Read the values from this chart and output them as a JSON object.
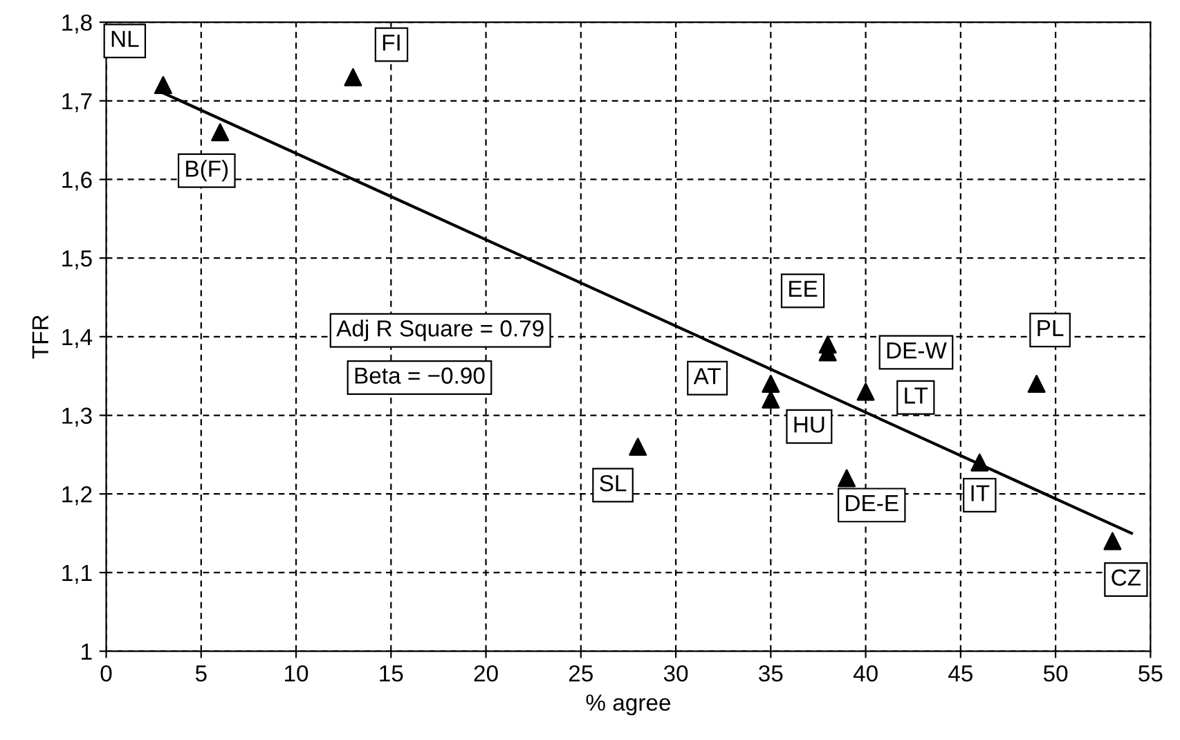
{
  "chart_data": {
    "type": "scatter",
    "xlabel": "% agree",
    "ylabel": "TFR",
    "xlim": [
      0,
      55
    ],
    "xticks": [
      0,
      5,
      10,
      15,
      20,
      25,
      30,
      35,
      40,
      45,
      50,
      55
    ],
    "ylim": [
      1,
      1.8
    ],
    "yticks": [
      1,
      {
        "value": 1.1,
        "label": "1,1"
      },
      {
        "value": 1.2,
        "label": "1,2"
      },
      {
        "value": 1.3,
        "label": "1,3"
      },
      {
        "value": 1.4,
        "label": "1,4"
      },
      {
        "value": 1.5,
        "label": "1,5"
      },
      {
        "value": 1.6,
        "label": "1,6"
      },
      {
        "value": 1.7,
        "label": "1,7"
      },
      {
        "value": 1.8,
        "label": "1,8"
      }
    ],
    "grid": true,
    "legend": false,
    "series": [
      {
        "color": "#000000",
        "marker": "triangle",
        "x": [
          3,
          6,
          13,
          28,
          35,
          35,
          38,
          38,
          39,
          40,
          46,
          49,
          53
        ],
        "values": [
          1.72,
          1.66,
          1.73,
          1.26,
          1.34,
          1.32,
          1.39,
          1.38,
          1.22,
          1.33,
          1.24,
          1.34,
          1.14
        ]
      },
      {
        "type": "line",
        "color": "#000000",
        "line_style": "solid",
        "x": [
          3,
          54
        ],
        "values": [
          1.71,
          1.15
        ]
      }
    ],
    "annotations": [
      {
        "text": "NL",
        "x": 3,
        "y": 1.72
      },
      {
        "text": "B(F)",
        "x": 6,
        "y": 1.66
      },
      {
        "text": "FI",
        "x": 13,
        "y": 1.73
      },
      {
        "text": "SL",
        "x": 28,
        "y": 1.26
      },
      {
        "text": "AT",
        "x": 35,
        "y": 1.34
      },
      {
        "text": "HU",
        "x": 35,
        "y": 1.32
      },
      {
        "text": "EE",
        "x": 38,
        "y": 1.39
      },
      {
        "text": "DE-W",
        "x": 38,
        "y": 1.38
      },
      {
        "text": "DE-E",
        "x": 39,
        "y": 1.22
      },
      {
        "text": "LT",
        "x": 40,
        "y": 1.33
      },
      {
        "text": "IT",
        "x": 46,
        "y": 1.24
      },
      {
        "text": "PL",
        "x": 49,
        "y": 1.34
      },
      {
        "text": "CZ",
        "x": 53,
        "y": 1.14
      },
      "Adj R Square = 0.79",
      "Beta = −0.90"
    ]
  }
}
